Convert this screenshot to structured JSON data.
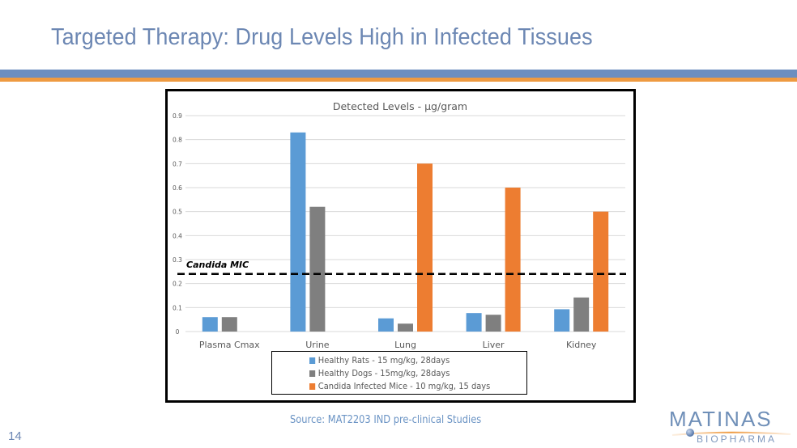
{
  "slide": {
    "title": "Targeted Therapy: Drug Levels High in Infected Tissues",
    "source": "Source: MAT2203 IND pre-clinical Studies",
    "page_number": "14",
    "logo": {
      "main": "MATINAS",
      "sub": "BIOPHARMA"
    },
    "colors": {
      "title": "#6c87b3",
      "band_blue": "#6c8ebf",
      "band_orange": "#ee9a41"
    }
  },
  "chart_data": {
    "type": "bar",
    "title": "Detected Levels - µg/gram",
    "xlabel": "",
    "ylabel": "",
    "categories": [
      "Plasma Cmax",
      "Urine",
      "Lung",
      "Liver",
      "Kidney"
    ],
    "series": [
      {
        "name": "Healthy Rats - 15 mg/kg, 28days",
        "color": "#5b9bd5",
        "values": [
          0.06,
          0.83,
          0.055,
          0.077,
          0.093
        ]
      },
      {
        "name": "Healthy Dogs - 15mg/kg, 28days",
        "color": "#7f7f7f",
        "values": [
          0.06,
          0.52,
          0.033,
          0.07,
          0.142
        ]
      },
      {
        "name": "Candida Infected Mice - 10 mg/kg, 15 days",
        "color": "#ed7d31",
        "values": [
          null,
          null,
          0.7,
          0.6,
          0.5
        ]
      }
    ],
    "ylim": [
      0,
      0.9
    ],
    "yticks": [
      "0",
      "0.1",
      "0.2",
      "0.3",
      "0.4",
      "0.5",
      "0.6",
      "0.7",
      "0.8",
      "0.9"
    ],
    "grid": true,
    "legend_position": "bottom",
    "annotations": [
      {
        "type": "hline",
        "label": "Candida MIC",
        "value": 0.24,
        "style": "dashed",
        "color": "#000000"
      }
    ]
  }
}
